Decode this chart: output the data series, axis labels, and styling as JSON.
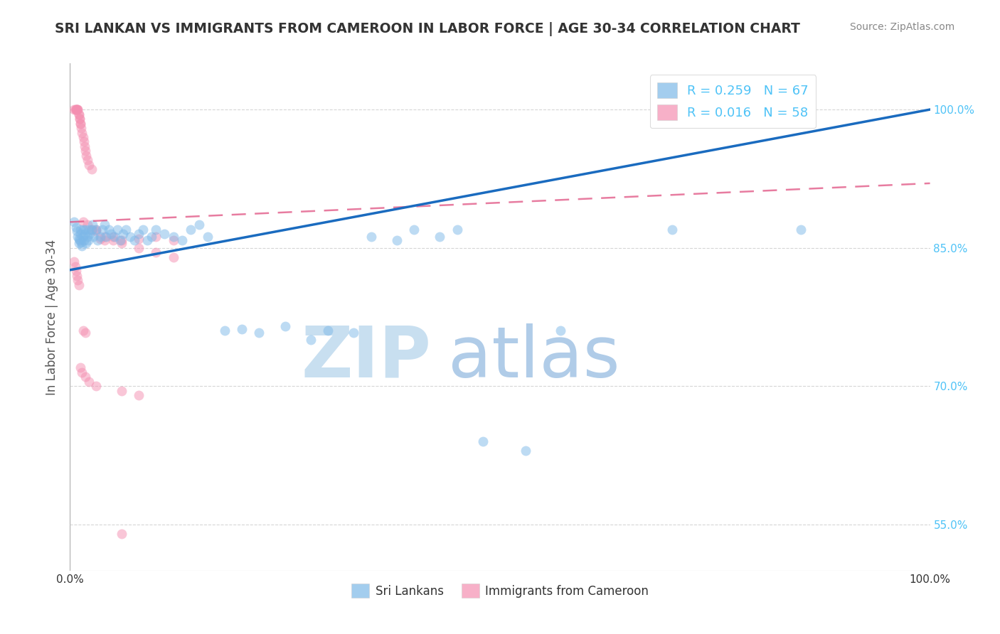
{
  "title": "SRI LANKAN VS IMMIGRANTS FROM CAMEROON IN LABOR FORCE | AGE 30-34 CORRELATION CHART",
  "source": "Source: ZipAtlas.com",
  "ylabel": "In Labor Force | Age 30-34",
  "xlim": [
    0.0,
    1.0
  ],
  "ylim": [
    0.5,
    1.05
  ],
  "ytick_positions": [
    0.55,
    0.7,
    0.85,
    1.0
  ],
  "ytick_labels": [
    "55.0%",
    "70.0%",
    "85.0%",
    "100.0%"
  ],
  "xtick_positions": [
    0.0,
    0.25,
    0.5,
    0.75,
    1.0
  ],
  "xtick_labels": [
    "0.0%",
    "",
    "",
    "",
    "100.0%"
  ],
  "legend_entries": [
    {
      "label": "R = 0.259   N = 67",
      "color": "#a8c4e0"
    },
    {
      "label": "R = 0.016   N = 58",
      "color": "#f4a0b0"
    }
  ],
  "bottom_legend": [
    {
      "label": "Sri Lankans",
      "color": "#a8c4e0"
    },
    {
      "label": "Immigrants from Cameroon",
      "color": "#f4a0b0"
    }
  ],
  "sri_lankan_x": [
    0.005,
    0.007,
    0.008,
    0.009,
    0.01,
    0.01,
    0.011,
    0.012,
    0.012,
    0.013,
    0.014,
    0.015,
    0.015,
    0.016,
    0.017,
    0.018,
    0.019,
    0.02,
    0.021,
    0.022,
    0.023,
    0.025,
    0.026,
    0.027,
    0.03,
    0.032,
    0.035,
    0.038,
    0.04,
    0.042,
    0.045,
    0.048,
    0.052,
    0.055,
    0.058,
    0.062,
    0.065,
    0.07,
    0.075,
    0.08,
    0.085,
    0.09,
    0.095,
    0.1,
    0.11,
    0.12,
    0.13,
    0.14,
    0.15,
    0.16,
    0.18,
    0.2,
    0.22,
    0.25,
    0.28,
    0.3,
    0.33,
    0.35,
    0.38,
    0.4,
    0.43,
    0.45,
    0.48,
    0.53,
    0.57,
    0.7,
    0.85
  ],
  "sri_lankan_y": [
    0.878,
    0.872,
    0.868,
    0.862,
    0.855,
    0.86,
    0.858,
    0.865,
    0.87,
    0.856,
    0.852,
    0.862,
    0.87,
    0.858,
    0.865,
    0.87,
    0.855,
    0.862,
    0.858,
    0.87,
    0.865,
    0.87,
    0.875,
    0.862,
    0.87,
    0.858,
    0.862,
    0.87,
    0.875,
    0.862,
    0.87,
    0.865,
    0.862,
    0.87,
    0.858,
    0.865,
    0.87,
    0.862,
    0.858,
    0.865,
    0.87,
    0.858,
    0.862,
    0.87,
    0.865,
    0.862,
    0.858,
    0.87,
    0.875,
    0.862,
    0.76,
    0.762,
    0.758,
    0.765,
    0.75,
    0.76,
    0.758,
    0.862,
    0.858,
    0.87,
    0.862,
    0.87,
    0.64,
    0.63,
    0.76,
    0.87,
    0.87
  ],
  "cameroon_x": [
    0.005,
    0.006,
    0.007,
    0.007,
    0.008,
    0.008,
    0.009,
    0.009,
    0.01,
    0.01,
    0.011,
    0.011,
    0.012,
    0.012,
    0.013,
    0.014,
    0.015,
    0.016,
    0.017,
    0.018,
    0.019,
    0.02,
    0.022,
    0.025,
    0.03,
    0.035,
    0.04,
    0.05,
    0.06,
    0.08,
    0.1,
    0.12,
    0.015,
    0.02,
    0.025,
    0.03,
    0.04,
    0.05,
    0.06,
    0.08,
    0.1,
    0.12,
    0.015,
    0.018,
    0.005,
    0.006,
    0.007,
    0.008,
    0.009,
    0.01,
    0.012,
    0.014,
    0.018,
    0.022,
    0.03,
    0.06,
    0.08,
    0.06
  ],
  "cameroon_y": [
    1.0,
    1.0,
    1.0,
    1.0,
    1.0,
    1.0,
    1.0,
    1.0,
    0.995,
    0.995,
    0.99,
    0.99,
    0.985,
    0.985,
    0.98,
    0.975,
    0.97,
    0.965,
    0.96,
    0.955,
    0.95,
    0.945,
    0.94,
    0.935,
    0.87,
    0.86,
    0.858,
    0.862,
    0.858,
    0.86,
    0.862,
    0.858,
    0.878,
    0.875,
    0.87,
    0.868,
    0.862,
    0.858,
    0.855,
    0.85,
    0.845,
    0.84,
    0.76,
    0.758,
    0.835,
    0.83,
    0.825,
    0.82,
    0.815,
    0.81,
    0.72,
    0.715,
    0.71,
    0.705,
    0.7,
    0.695,
    0.69,
    0.54
  ],
  "blue_line_x": [
    0.0,
    1.0
  ],
  "blue_line_y": [
    0.826,
    1.0
  ],
  "pink_line_x": [
    0.0,
    1.0
  ],
  "pink_line_y": [
    0.878,
    0.92
  ],
  "watermark_zip": "ZIP",
  "watermark_atlas": "atlas",
  "scatter_alpha": 0.5,
  "scatter_size": 100,
  "blue_color": "#7db8e8",
  "pink_color": "#f48fb1",
  "blue_line_color": "#1a6bbf",
  "pink_line_color": "#e05080",
  "grid_color": "#cccccc",
  "title_color": "#333333",
  "axis_label_color": "#555555",
  "right_tick_color": "#4fc3f7",
  "watermark_zip_color": "#c8dff0",
  "watermark_atlas_color": "#b0cce8",
  "watermark_fontsize": 72,
  "background_color": "#ffffff"
}
